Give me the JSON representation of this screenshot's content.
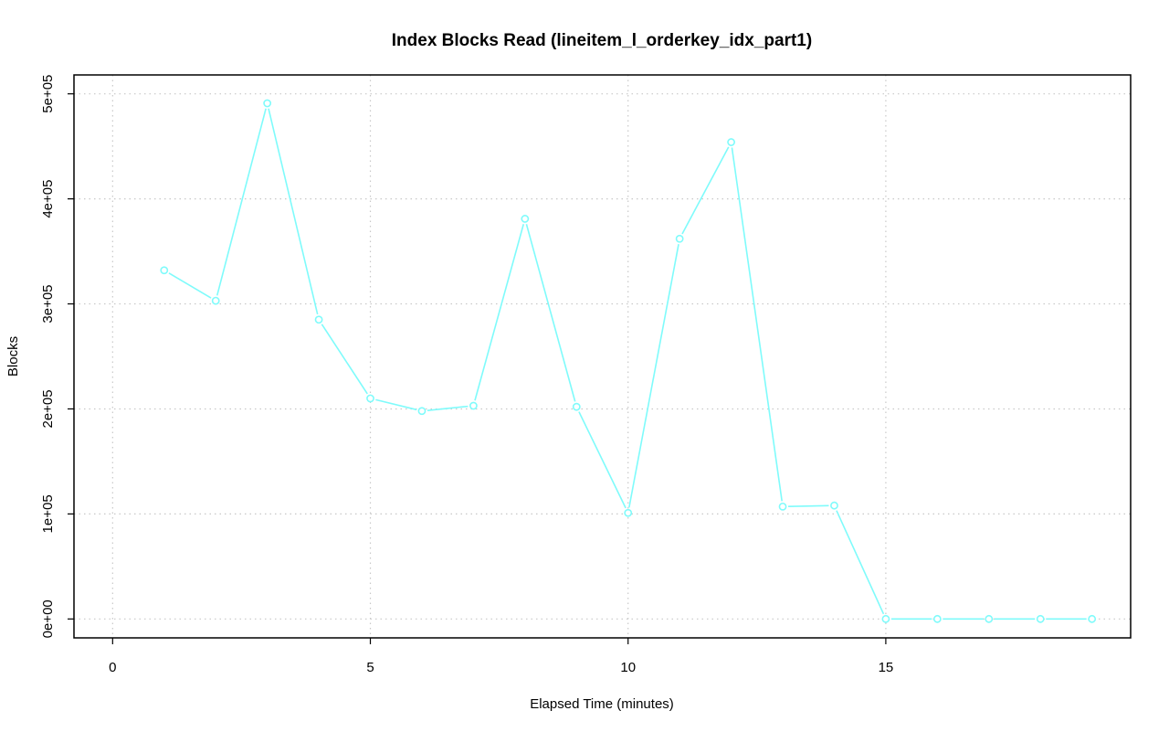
{
  "chart_data": {
    "type": "line",
    "title": "Index Blocks Read (lineitem_l_orderkey_idx_part1)",
    "xlabel": "Elapsed Time (minutes)",
    "ylabel": "Blocks",
    "xlim": [
      -0.75,
      19.75
    ],
    "ylim": [
      -18000,
      518000
    ],
    "x_ticks": [
      0,
      5,
      10,
      15
    ],
    "x_tick_labels": [
      "0",
      "5",
      "10",
      "15"
    ],
    "y_ticks": [
      0,
      100000,
      200000,
      300000,
      400000,
      500000
    ],
    "y_tick_labels": [
      "0e+00",
      "1e+05",
      "2e+05",
      "3e+05",
      "4e+05",
      "5e+05"
    ],
    "grid": true,
    "legend": false,
    "series": [
      {
        "color": "#7ffbfb",
        "x": [
          1,
          2,
          3,
          4,
          5,
          6,
          7,
          8,
          9,
          10,
          11,
          12,
          13,
          14,
          15,
          16,
          17,
          18,
          19
        ],
        "y": [
          332000,
          303000,
          491000,
          285000,
          210000,
          198000,
          203000,
          381000,
          202000,
          101000,
          362000,
          454000,
          107000,
          108000,
          0,
          0,
          0,
          0,
          0
        ]
      }
    ]
  }
}
